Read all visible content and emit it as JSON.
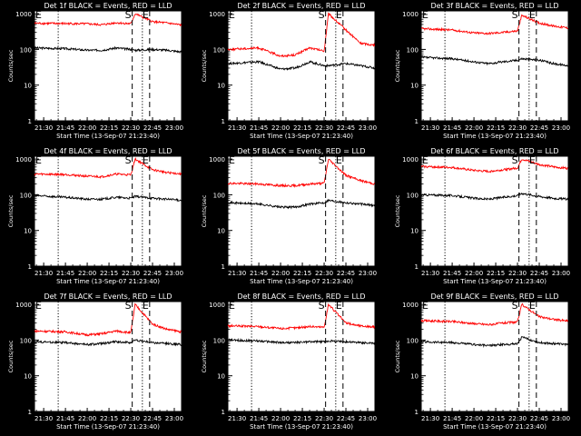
{
  "common": {
    "xlabel": "Start Time (13-Sep-07 21:23:40)",
    "ylabel": "Counts/sec",
    "x_tick_labels": [
      "21:30",
      "21:45",
      "22:00",
      "22:15",
      "22:30",
      "22:45",
      "23:00"
    ],
    "y_tick_labels": [
      "1",
      "10",
      "100",
      "1000"
    ],
    "marker_labels": [
      "E",
      "S",
      "E"
    ],
    "series_colors": {
      "events": "#000000",
      "lld": "#ff0000"
    }
  },
  "chart_data": [
    {
      "type": "line",
      "title": "Det 1f BLACK = Events, RED = LLD",
      "x_start": "21:23:40",
      "x_end": "23:05",
      "yscale": "log",
      "ylim": [
        1,
        1200
      ],
      "markers": [
        {
          "label": "E",
          "x": "21:23:40"
        },
        {
          "label": "S",
          "x": "22:31"
        },
        {
          "label": "E",
          "x": "22:43"
        }
      ],
      "dotted_lines": [
        "21:40",
        "22:38"
      ],
      "series": [
        {
          "name": "Events",
          "color": "#000000",
          "x": [
            "21:23:40",
            "21:45",
            "22:00",
            "22:10",
            "22:20",
            "22:30",
            "22:33",
            "22:45",
            "22:55",
            "23:05"
          ],
          "values": [
            110,
            105,
            95,
            95,
            110,
            100,
            95,
            100,
            95,
            85
          ]
        },
        {
          "name": "LLD",
          "color": "#ff0000",
          "x": [
            "21:23:40",
            "21:45",
            "22:00",
            "22:10",
            "22:20",
            "22:30",
            "22:33",
            "22:45",
            "22:55",
            "23:05"
          ],
          "values": [
            540,
            530,
            520,
            490,
            560,
            520,
            1000,
            600,
            550,
            480
          ]
        }
      ]
    },
    {
      "type": "line",
      "title": "Det 2f BLACK = Events, RED = LLD",
      "x_start": "21:23:40",
      "x_end": "23:05",
      "yscale": "log",
      "ylim": [
        1,
        1200
      ],
      "markers": [
        {
          "label": "E",
          "x": "21:23:40"
        },
        {
          "label": "S",
          "x": "22:31"
        },
        {
          "label": "E",
          "x": "22:43"
        }
      ],
      "dotted_lines": [
        "21:40",
        "22:38"
      ],
      "series": [
        {
          "name": "Events",
          "color": "#000000",
          "x": [
            "21:23:40",
            "21:45",
            "22:00",
            "22:10",
            "22:20",
            "22:30",
            "22:33",
            "22:45",
            "22:55",
            "23:05"
          ],
          "values": [
            40,
            45,
            28,
            30,
            45,
            35,
            35,
            40,
            35,
            30
          ]
        },
        {
          "name": "LLD",
          "color": "#ff0000",
          "x": [
            "21:23:40",
            "21:45",
            "22:00",
            "22:10",
            "22:20",
            "22:30",
            "22:33",
            "22:45",
            "22:55",
            "23:05"
          ],
          "values": [
            100,
            110,
            65,
            70,
            110,
            90,
            1000,
            350,
            150,
            130
          ]
        }
      ]
    },
    {
      "type": "line",
      "title": "Det 3f BLACK = Events, RED = LLD",
      "x_start": "21:23:40",
      "x_end": "23:05",
      "yscale": "log",
      "ylim": [
        1,
        1200
      ],
      "markers": [
        {
          "label": "E",
          "x": "21:23:40"
        },
        {
          "label": "S",
          "x": "22:31"
        },
        {
          "label": "E",
          "x": "22:43"
        }
      ],
      "dotted_lines": [
        "21:40",
        "22:38"
      ],
      "series": [
        {
          "name": "Events",
          "color": "#000000",
          "x": [
            "21:23:40",
            "21:45",
            "22:00",
            "22:10",
            "22:20",
            "22:30",
            "22:33",
            "22:45",
            "22:55",
            "23:05"
          ],
          "values": [
            60,
            55,
            45,
            40,
            45,
            50,
            55,
            50,
            40,
            35
          ]
        },
        {
          "name": "LLD",
          "color": "#ff0000",
          "x": [
            "21:23:40",
            "21:45",
            "22:00",
            "22:10",
            "22:20",
            "22:30",
            "22:33",
            "22:45",
            "22:55",
            "23:05"
          ],
          "values": [
            380,
            350,
            290,
            280,
            300,
            330,
            900,
            550,
            450,
            400
          ]
        }
      ]
    },
    {
      "type": "line",
      "title": "Det 4f BLACK = Events, RED = LLD",
      "x_start": "21:23:40",
      "x_end": "23:05",
      "yscale": "log",
      "ylim": [
        1,
        1200
      ],
      "markers": [
        {
          "label": "E",
          "x": "21:23:40"
        },
        {
          "label": "S",
          "x": "22:31"
        },
        {
          "label": "E",
          "x": "22:43"
        }
      ],
      "dotted_lines": [
        "21:40",
        "22:38"
      ],
      "series": [
        {
          "name": "Events",
          "color": "#000000",
          "x": [
            "21:23:40",
            "21:45",
            "22:00",
            "22:10",
            "22:20",
            "22:30",
            "22:33",
            "22:45",
            "22:55",
            "23:05"
          ],
          "values": [
            95,
            85,
            75,
            75,
            85,
            80,
            90,
            80,
            75,
            70
          ]
        },
        {
          "name": "LLD",
          "color": "#ff0000",
          "x": [
            "21:23:40",
            "21:45",
            "22:00",
            "22:10",
            "22:20",
            "22:30",
            "22:33",
            "22:45",
            "22:55",
            "23:05"
          ],
          "values": [
            380,
            370,
            330,
            320,
            380,
            360,
            1000,
            500,
            420,
            380
          ]
        }
      ]
    },
    {
      "type": "line",
      "title": "Det 5f BLACK = Events, RED = LLD",
      "x_start": "21:23:40",
      "x_end": "23:05",
      "yscale": "log",
      "ylim": [
        1,
        1200
      ],
      "markers": [
        {
          "label": "E",
          "x": "21:23:40"
        },
        {
          "label": "S",
          "x": "22:31"
        },
        {
          "label": "E",
          "x": "22:43"
        }
      ],
      "dotted_lines": [
        "21:40",
        "22:38"
      ],
      "series": [
        {
          "name": "Events",
          "color": "#000000",
          "x": [
            "21:23:40",
            "21:45",
            "22:00",
            "22:10",
            "22:20",
            "22:30",
            "22:33",
            "22:45",
            "22:55",
            "23:05"
          ],
          "values": [
            60,
            55,
            45,
            45,
            55,
            60,
            70,
            60,
            55,
            50
          ]
        },
        {
          "name": "LLD",
          "color": "#ff0000",
          "x": [
            "21:23:40",
            "21:45",
            "22:00",
            "22:10",
            "22:20",
            "22:30",
            "22:33",
            "22:45",
            "22:55",
            "23:05"
          ],
          "values": [
            210,
            200,
            180,
            180,
            200,
            210,
            1000,
            350,
            250,
            200
          ]
        }
      ]
    },
    {
      "type": "line",
      "title": "Det 6f BLACK = Events, RED = LLD",
      "x_start": "21:23:40",
      "x_end": "23:05",
      "yscale": "log",
      "ylim": [
        1,
        1200
      ],
      "markers": [
        {
          "label": "E",
          "x": "21:23:40"
        },
        {
          "label": "S",
          "x": "22:31"
        },
        {
          "label": "E",
          "x": "22:43"
        }
      ],
      "dotted_lines": [
        "21:40",
        "22:38"
      ],
      "series": [
        {
          "name": "Events",
          "color": "#000000",
          "x": [
            "21:23:40",
            "21:45",
            "22:00",
            "22:10",
            "22:20",
            "22:30",
            "22:33",
            "22:45",
            "22:55",
            "23:05"
          ],
          "values": [
            100,
            95,
            80,
            75,
            85,
            95,
            110,
            90,
            80,
            75
          ]
        },
        {
          "name": "LLD",
          "color": "#ff0000",
          "x": [
            "21:23:40",
            "21:45",
            "22:00",
            "22:10",
            "22:20",
            "22:30",
            "22:33",
            "22:45",
            "22:55",
            "23:05"
          ],
          "values": [
            620,
            580,
            480,
            450,
            500,
            560,
            1000,
            700,
            600,
            550
          ]
        }
      ]
    },
    {
      "type": "line",
      "title": "Det 7f BLACK = Events, RED = LLD",
      "x_start": "21:23:40",
      "x_end": "23:05",
      "yscale": "log",
      "ylim": [
        1,
        1200
      ],
      "markers": [
        {
          "label": "E",
          "x": "21:23:40"
        },
        {
          "label": "S",
          "x": "22:31"
        },
        {
          "label": "E",
          "x": "22:43"
        }
      ],
      "dotted_lines": [
        "21:40",
        "22:38"
      ],
      "series": [
        {
          "name": "Events",
          "color": "#000000",
          "x": [
            "21:23:40",
            "21:45",
            "22:00",
            "22:10",
            "22:20",
            "22:30",
            "22:33",
            "22:45",
            "22:55",
            "23:05"
          ],
          "values": [
            90,
            85,
            75,
            80,
            90,
            85,
            100,
            85,
            80,
            75
          ]
        },
        {
          "name": "LLD",
          "color": "#ff0000",
          "x": [
            "21:23:40",
            "21:45",
            "22:00",
            "22:10",
            "22:20",
            "22:30",
            "22:33",
            "22:45",
            "22:55",
            "23:05"
          ],
          "values": [
            180,
            170,
            140,
            150,
            180,
            160,
            1000,
            280,
            200,
            170
          ]
        }
      ]
    },
    {
      "type": "line",
      "title": "Det 8f BLACK = Events, RED = LLD",
      "x_start": "21:23:40",
      "x_end": "23:05",
      "yscale": "log",
      "ylim": [
        1,
        1200
      ],
      "markers": [
        {
          "label": "E",
          "x": "21:23:40"
        },
        {
          "label": "S",
          "x": "22:31"
        },
        {
          "label": "E",
          "x": "22:43"
        }
      ],
      "dotted_lines": [
        "21:40",
        "22:38"
      ],
      "series": [
        {
          "name": "Events",
          "color": "#000000",
          "x": [
            "21:23:40",
            "21:45",
            "22:00",
            "22:10",
            "22:20",
            "22:30",
            "22:33",
            "22:45",
            "22:55",
            "23:05"
          ],
          "values": [
            100,
            95,
            85,
            85,
            90,
            90,
            95,
            90,
            85,
            80
          ]
        },
        {
          "name": "LLD",
          "color": "#ff0000",
          "x": [
            "21:23:40",
            "21:45",
            "22:00",
            "22:10",
            "22:20",
            "22:30",
            "22:33",
            "22:45",
            "22:55",
            "23:05"
          ],
          "values": [
            250,
            240,
            210,
            220,
            240,
            230,
            1000,
            300,
            250,
            230
          ]
        }
      ]
    },
    {
      "type": "line",
      "title": "Det 9f BLACK = Events, RED = LLD",
      "x_start": "21:23:40",
      "x_end": "23:05",
      "yscale": "log",
      "ylim": [
        1,
        1200
      ],
      "markers": [
        {
          "label": "E",
          "x": "21:23:40"
        },
        {
          "label": "S",
          "x": "22:31"
        },
        {
          "label": "E",
          "x": "22:43"
        }
      ],
      "dotted_lines": [
        "21:40",
        "22:38"
      ],
      "series": [
        {
          "name": "Events",
          "color": "#000000",
          "x": [
            "21:23:40",
            "21:45",
            "22:00",
            "22:10",
            "22:20",
            "22:30",
            "22:33",
            "22:45",
            "22:55",
            "23:05"
          ],
          "values": [
            90,
            85,
            75,
            70,
            75,
            80,
            120,
            85,
            80,
            75
          ]
        },
        {
          "name": "LLD",
          "color": "#ff0000",
          "x": [
            "21:23:40",
            "21:45",
            "22:00",
            "22:10",
            "22:20",
            "22:30",
            "22:33",
            "22:45",
            "22:55",
            "23:05"
          ],
          "values": [
            350,
            330,
            290,
            270,
            300,
            320,
            1000,
            450,
            380,
            340
          ]
        }
      ]
    }
  ]
}
